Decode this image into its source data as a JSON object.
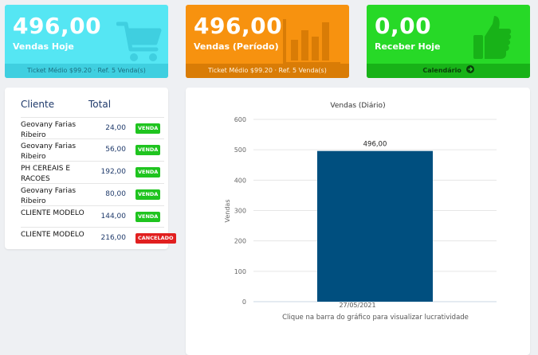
{
  "cards": [
    {
      "value": "496,00",
      "label": "Vendas Hoje",
      "footer": "Ticket Médio $99.20 · Ref. 5 Venda(s)",
      "icon": "shopping-cart-icon"
    },
    {
      "value": "496,00",
      "label": "Vendas (Período)",
      "footer": "Ticket Médio $99.20 · Ref. 5 Venda(s)",
      "icon": "bar-chart-icon"
    },
    {
      "value": "0,00",
      "label": "Receber Hoje",
      "footer": "Calendário",
      "icon": "thumbs-up-icon",
      "footer_icon": "arrow-right-circle-icon"
    }
  ],
  "sales_table": {
    "headers": {
      "client": "Cliente",
      "total": "Total"
    },
    "rows": [
      {
        "client": "Geovany Farias Ribeiro",
        "total": "24,00",
        "status": "VENDA"
      },
      {
        "client": "Geovany Farias Ribeiro",
        "total": "56,00",
        "status": "VENDA"
      },
      {
        "client": "PH CEREAIS E RACOES",
        "total": "192,00",
        "status": "VENDA"
      },
      {
        "client": "Geovany Farias Ribeiro",
        "total": "80,00",
        "status": "VENDA"
      },
      {
        "client": "CLIENTE MODELO",
        "total": "144,00",
        "status": "VENDA"
      },
      {
        "client": "CLIENTE MODELO",
        "total": "216,00",
        "status": "CANCELADO"
      }
    ]
  },
  "chart_data": {
    "type": "bar",
    "title": "Vendas (Diário)",
    "ylabel": "Vendas",
    "xlabel": "",
    "categories": [
      "27/05/2021"
    ],
    "values": [
      496
    ],
    "data_labels": [
      "496,00"
    ],
    "ylim": [
      0,
      600
    ],
    "yticks": [
      0,
      100,
      200,
      300,
      400,
      500,
      600
    ],
    "grid": true,
    "bar_color": "#004f7f",
    "caption": "Clique na barra do gráfico para visualizar lucratividade"
  },
  "colors": {
    "cyan": "#55e6f3",
    "orange": "#f7920f",
    "green": "#27d927"
  }
}
